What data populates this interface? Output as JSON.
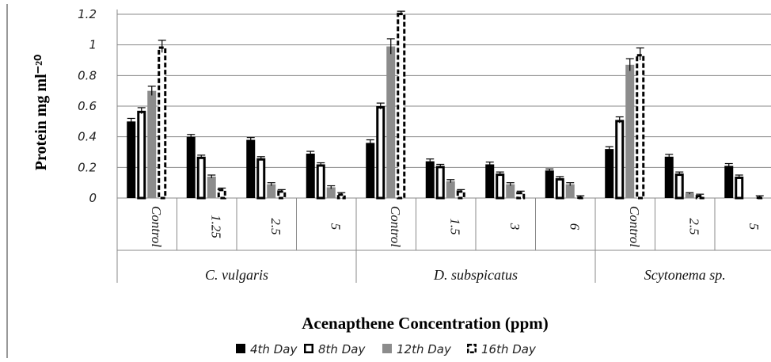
{
  "chart_data": {
    "type": "bar",
    "xlabel": "Acenapthene Concentration (ppm)",
    "ylabel": "Protein mg ml⁻²⁰",
    "ylim": [
      0,
      1.2
    ],
    "yticks": [
      "0",
      "0.2",
      "0.4",
      "0.6",
      "0.8",
      "1",
      "1.2"
    ],
    "grid": true,
    "legend_position": "bottom",
    "groups": [
      {
        "name": "C. vulgaris",
        "categories": [
          "Control",
          "1.25",
          "2.5",
          "5"
        ]
      },
      {
        "name": "D. subspicatus",
        "categories": [
          "Control",
          "1.5",
          "3",
          "6"
        ]
      },
      {
        "name": "Scytonema sp.",
        "categories": [
          "Control",
          "2.5",
          "5"
        ]
      }
    ],
    "series": [
      {
        "name": "4th Day",
        "color": "#000000",
        "values": [
          0.5,
          0.4,
          0.38,
          0.29,
          0.36,
          0.24,
          0.22,
          0.18,
          0.32,
          0.27,
          0.21
        ],
        "errors": [
          0.02,
          0.015,
          0.015,
          0.015,
          0.02,
          0.015,
          0.015,
          0.01,
          0.015,
          0.015,
          0.015
        ]
      },
      {
        "name": "8th Day",
        "color": "#ffffff",
        "values": [
          0.57,
          0.27,
          0.26,
          0.22,
          0.6,
          0.21,
          0.16,
          0.13,
          0.51,
          0.16,
          0.14
        ],
        "errors": [
          0.02,
          0.01,
          0.01,
          0.01,
          0.02,
          0.01,
          0.01,
          0.01,
          0.02,
          0.01,
          0.01
        ]
      },
      {
        "name": "12th Day",
        "color": "#8c8c8c",
        "values": [
          0.7,
          0.14,
          0.09,
          0.07,
          0.99,
          0.11,
          0.09,
          0.09,
          0.87,
          0.03,
          0.0
        ],
        "errors": [
          0.03,
          0.01,
          0.01,
          0.01,
          0.05,
          0.01,
          0.01,
          0.01,
          0.04,
          0.005,
          0.0
        ]
      },
      {
        "name": "16th Day",
        "color": "#ffffff",
        "values": [
          0.99,
          0.06,
          0.05,
          0.03,
          1.21,
          0.05,
          0.04,
          0.01,
          0.94,
          0.02,
          0.01
        ],
        "errors": [
          0.04,
          0.005,
          0.005,
          0.005,
          0.01,
          0.005,
          0.005,
          0.005,
          0.04,
          0.005,
          0.005
        ]
      }
    ]
  }
}
